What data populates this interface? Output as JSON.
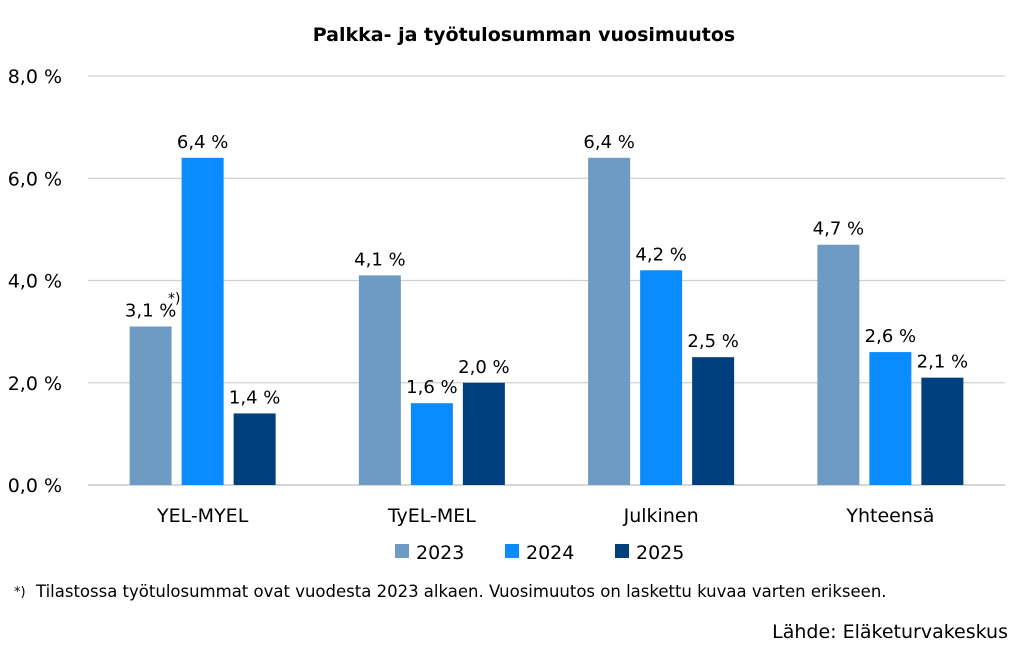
{
  "chart_data": {
    "type": "bar",
    "title": "Palkka- ja työtulosumman vuosimuutos",
    "categories": [
      "YEL-MYEL",
      "TyEL-MEL",
      "Julkinen",
      "Yhteensä"
    ],
    "series": [
      {
        "name": "2023",
        "color": "#6d9bc3",
        "values": [
          3.1,
          4.1,
          6.4,
          4.7
        ],
        "labels": [
          "3,1 %",
          "4,1 %",
          "6,4 %",
          "4,7 %"
        ]
      },
      {
        "name": "2024",
        "color": "#0a8cff",
        "values": [
          6.4,
          1.6,
          4.2,
          2.6
        ],
        "labels": [
          "6,4 %",
          "1,6 %",
          "4,2 %",
          "2,6 %"
        ]
      },
      {
        "name": "2025",
        "color": "#003f7d",
        "values": [
          1.4,
          2.0,
          2.5,
          2.1
        ],
        "labels": [
          "1,4 %",
          "2,0 %",
          "2,5 %",
          "2,1 %"
        ]
      }
    ],
    "ylim": [
      0,
      8
    ],
    "yticks": [
      "0,0 %",
      "2,0 %",
      "4,0 %",
      "6,0 %",
      "8,0 %"
    ],
    "grid": true,
    "legend": "bottom",
    "annotation_marker": "*)",
    "footnote_marker": "*)",
    "footnote": "Tilastossa työtulosummat ovat vuodesta 2023 alkaen. Vuosimuutos on laskettu kuvaa varten erikseen.",
    "source": "Lähde: Eläketurvakeskus"
  }
}
